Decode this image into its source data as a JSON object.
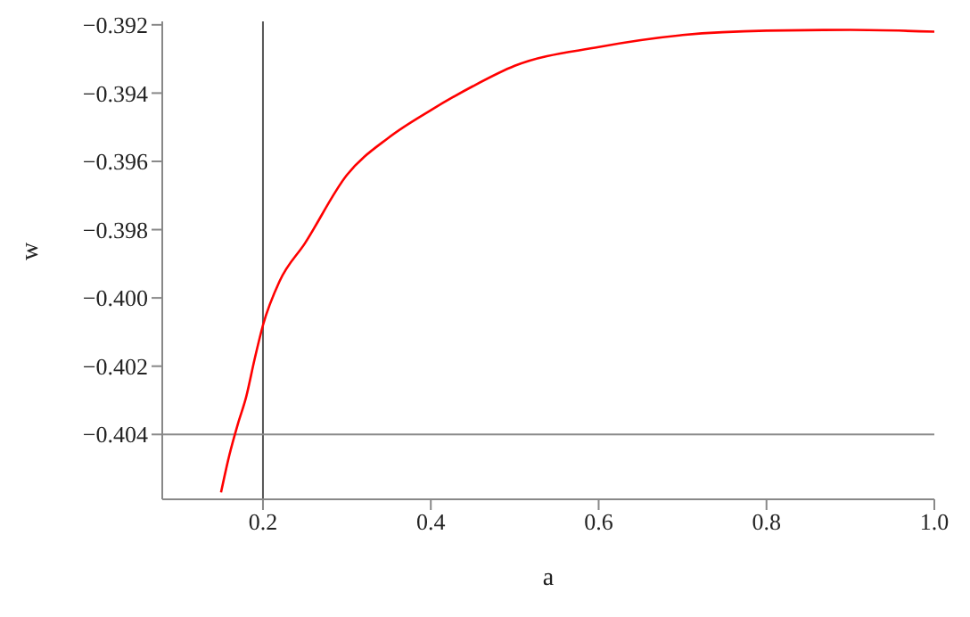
{
  "chart_data": {
    "type": "line",
    "xlabel": "a",
    "ylabel": "w",
    "x": [
      0.15,
      0.16,
      0.17,
      0.18,
      0.19,
      0.2,
      0.22,
      0.25,
      0.3,
      0.35,
      0.4,
      0.45,
      0.5,
      0.6,
      0.7,
      0.8,
      0.9,
      1.0
    ],
    "series": [
      {
        "color": "#ff0000",
        "values": [
          -0.4057,
          -0.4046,
          -0.4037,
          -0.4029,
          -0.4018,
          -0.4008,
          -0.3995,
          -0.3984,
          -0.3964,
          -0.3953,
          -0.3945,
          -0.3938,
          -0.3932,
          -0.39265,
          -0.3923,
          -0.39217,
          -0.39215,
          -0.3922
        ]
      }
    ],
    "xlim": [
      0.08,
      1.0
    ],
    "ylim": [
      -0.4059,
      -0.3919
    ],
    "xticks": [
      0.2,
      0.4,
      0.6,
      0.8,
      {
        "value": 1,
        "label": "1.0"
      }
    ],
    "yticks": [
      {
        "value": -0.404,
        "label": "−0.404"
      },
      {
        "value": -0.402,
        "label": "−0.402"
      },
      {
        "value": -0.4,
        "label": "−0.400"
      },
      {
        "value": -0.398,
        "label": "−0.398"
      },
      {
        "value": -0.396,
        "label": "−0.396"
      },
      {
        "value": -0.394,
        "label": "−0.394"
      },
      {
        "value": -0.392,
        "label": "−0.392"
      }
    ],
    "ref_lines": [
      {
        "axis": "x",
        "value": 0.2,
        "color": "#555555"
      },
      {
        "axis": "y",
        "value": -0.404,
        "color": "#888888"
      }
    ],
    "grid": false,
    "legend": false,
    "marker": "none",
    "line_style": "solid"
  }
}
